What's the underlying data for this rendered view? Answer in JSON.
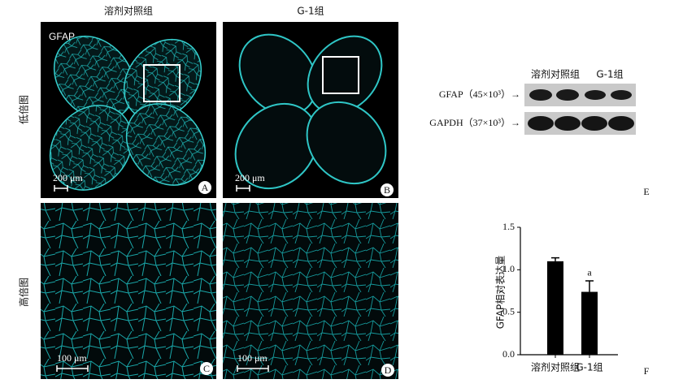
{
  "figure": {
    "column_titles": [
      "溶剂对照组",
      "G-1组"
    ],
    "row_labels": [
      "低倍图",
      "高倍图"
    ],
    "stain_label": "GFAP",
    "panels": [
      {
        "letter": "A",
        "scale_bar": "200 μm"
      },
      {
        "letter": "B",
        "scale_bar": "200 μm"
      },
      {
        "letter": "C",
        "scale_bar": "100 μm"
      },
      {
        "letter": "D",
        "scale_bar": "100 μm"
      }
    ]
  },
  "blot": {
    "letter": "E",
    "group_labels": [
      "溶剂对照组",
      "G-1组"
    ],
    "bands": [
      "GFAP（45×10³）→",
      "GAPDH（37×10³）→"
    ]
  },
  "chart_data": {
    "type": "bar",
    "letter": "F",
    "y_label": "GFAP相对表达量",
    "categories": [
      "溶剂对照组",
      "G-1组"
    ],
    "values": [
      1.1,
      0.74
    ],
    "errors": [
      0.04,
      0.13
    ],
    "color": "#000000",
    "annotations": [
      "",
      "a"
    ],
    "ylim": [
      0,
      1.5
    ],
    "yticks": [
      {
        "value": 0,
        "label": "0.0"
      },
      {
        "value": 0.5,
        "label": "0.5"
      },
      {
        "value": 1,
        "label": "1.0"
      },
      {
        "value": 1.5,
        "label": "1.5"
      }
    ]
  }
}
